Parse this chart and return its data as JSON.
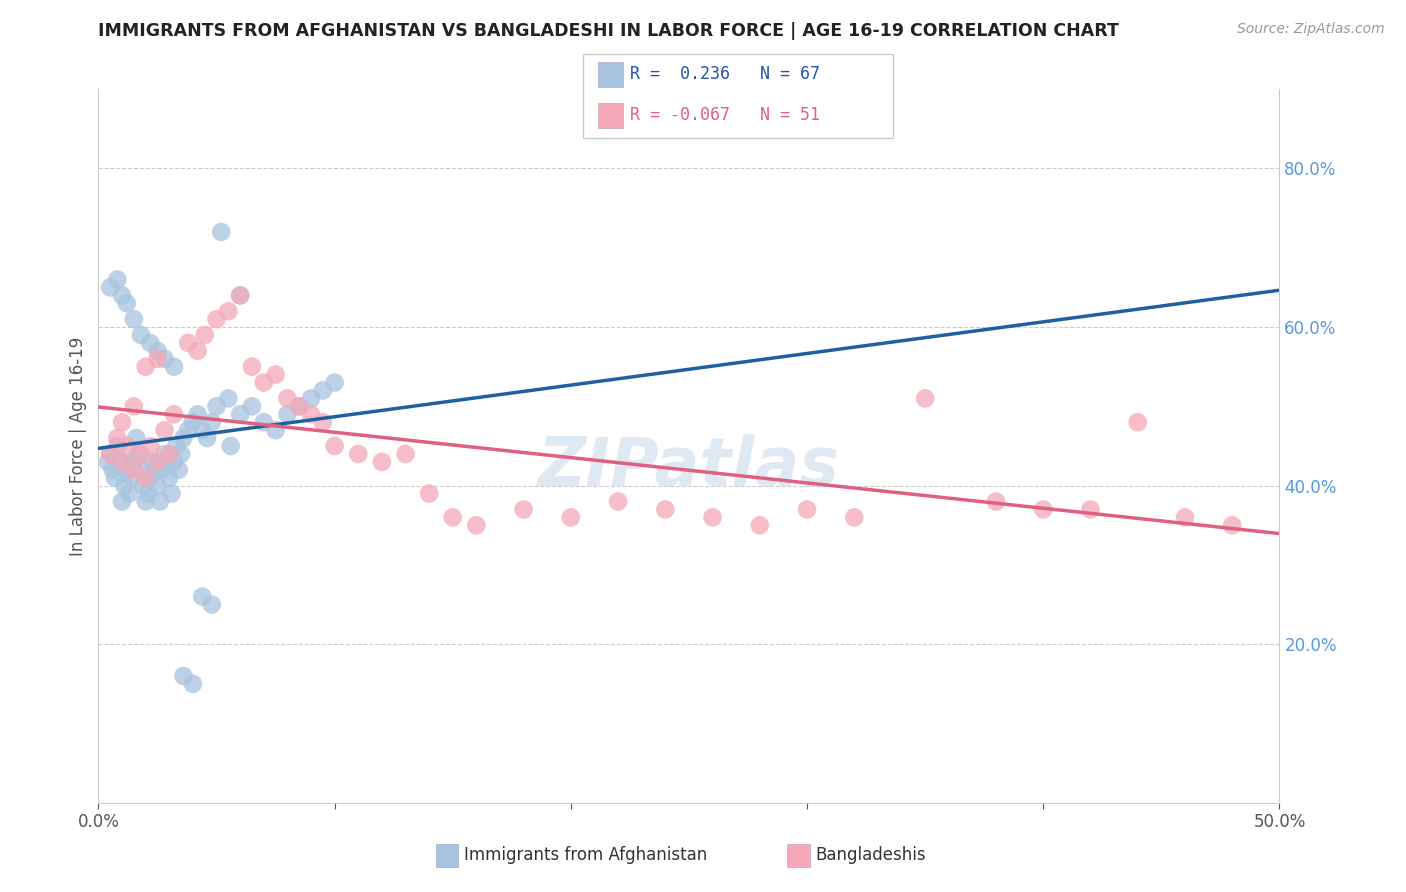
{
  "title": "IMMIGRANTS FROM AFGHANISTAN VS BANGLADESHI IN LABOR FORCE | AGE 16-19 CORRELATION CHART",
  "source": "Source: ZipAtlas.com",
  "ylabel": "In Labor Force | Age 16-19",
  "xlim": [
    0.0,
    0.5
  ],
  "ylim": [
    0.0,
    0.9
  ],
  "x_ticks": [
    0.0,
    0.1,
    0.2,
    0.3,
    0.4,
    0.5
  ],
  "x_tick_labels": [
    "0.0%",
    "",
    "",
    "",
    "",
    "50.0%"
  ],
  "y_ticks_right": [
    0.2,
    0.4,
    0.6,
    0.8
  ],
  "y_tick_labels_right": [
    "20.0%",
    "40.0%",
    "60.0%",
    "80.0%"
  ],
  "afghanistan_color": "#a8c4e0",
  "bangladesh_color": "#f4a8b8",
  "afghanistan_line_color": "#2060a0",
  "bangladesh_line_color": "#e06080",
  "dashed_line_color": "#a8d0f0",
  "watermark": "ZIPatlas",
  "background_color": "#ffffff",
  "afghanistan_x": [
    0.004,
    0.005,
    0.006,
    0.007,
    0.008,
    0.009,
    0.01,
    0.011,
    0.012,
    0.013,
    0.014,
    0.015,
    0.016,
    0.017,
    0.018,
    0.019,
    0.02,
    0.021,
    0.022,
    0.023,
    0.024,
    0.025,
    0.026,
    0.027,
    0.028,
    0.029,
    0.03,
    0.031,
    0.032,
    0.033,
    0.034,
    0.035,
    0.036,
    0.038,
    0.04,
    0.042,
    0.044,
    0.046,
    0.048,
    0.05,
    0.055,
    0.06,
    0.065,
    0.07,
    0.075,
    0.08,
    0.085,
    0.09,
    0.095,
    0.1,
    0.005,
    0.008,
    0.01,
    0.012,
    0.015,
    0.018,
    0.022,
    0.025,
    0.028,
    0.032,
    0.036,
    0.04,
    0.044,
    0.048,
    0.052,
    0.056,
    0.06
  ],
  "afghanistan_y": [
    0.43,
    0.44,
    0.42,
    0.41,
    0.45,
    0.43,
    0.38,
    0.4,
    0.42,
    0.39,
    0.41,
    0.43,
    0.46,
    0.44,
    0.42,
    0.4,
    0.38,
    0.39,
    0.41,
    0.43,
    0.42,
    0.4,
    0.38,
    0.42,
    0.44,
    0.43,
    0.41,
    0.39,
    0.43,
    0.45,
    0.42,
    0.44,
    0.46,
    0.47,
    0.48,
    0.49,
    0.47,
    0.46,
    0.48,
    0.5,
    0.51,
    0.49,
    0.5,
    0.48,
    0.47,
    0.49,
    0.5,
    0.51,
    0.52,
    0.53,
    0.65,
    0.66,
    0.64,
    0.63,
    0.61,
    0.59,
    0.58,
    0.57,
    0.56,
    0.55,
    0.16,
    0.15,
    0.26,
    0.25,
    0.72,
    0.45,
    0.64
  ],
  "bangladesh_x": [
    0.005,
    0.008,
    0.01,
    0.012,
    0.015,
    0.018,
    0.02,
    0.022,
    0.025,
    0.028,
    0.03,
    0.032,
    0.038,
    0.042,
    0.045,
    0.05,
    0.055,
    0.06,
    0.065,
    0.07,
    0.075,
    0.08,
    0.085,
    0.09,
    0.095,
    0.1,
    0.11,
    0.12,
    0.13,
    0.14,
    0.15,
    0.16,
    0.18,
    0.2,
    0.22,
    0.24,
    0.26,
    0.28,
    0.3,
    0.32,
    0.35,
    0.38,
    0.4,
    0.42,
    0.44,
    0.46,
    0.48,
    0.01,
    0.015,
    0.02,
    0.025
  ],
  "bangladesh_y": [
    0.44,
    0.46,
    0.43,
    0.45,
    0.42,
    0.44,
    0.41,
    0.45,
    0.43,
    0.47,
    0.44,
    0.49,
    0.58,
    0.57,
    0.59,
    0.61,
    0.62,
    0.64,
    0.55,
    0.53,
    0.54,
    0.51,
    0.5,
    0.49,
    0.48,
    0.45,
    0.44,
    0.43,
    0.44,
    0.39,
    0.36,
    0.35,
    0.37,
    0.36,
    0.38,
    0.37,
    0.36,
    0.35,
    0.37,
    0.36,
    0.51,
    0.38,
    0.37,
    0.37,
    0.48,
    0.36,
    0.35,
    0.48,
    0.5,
    0.55,
    0.56
  ]
}
